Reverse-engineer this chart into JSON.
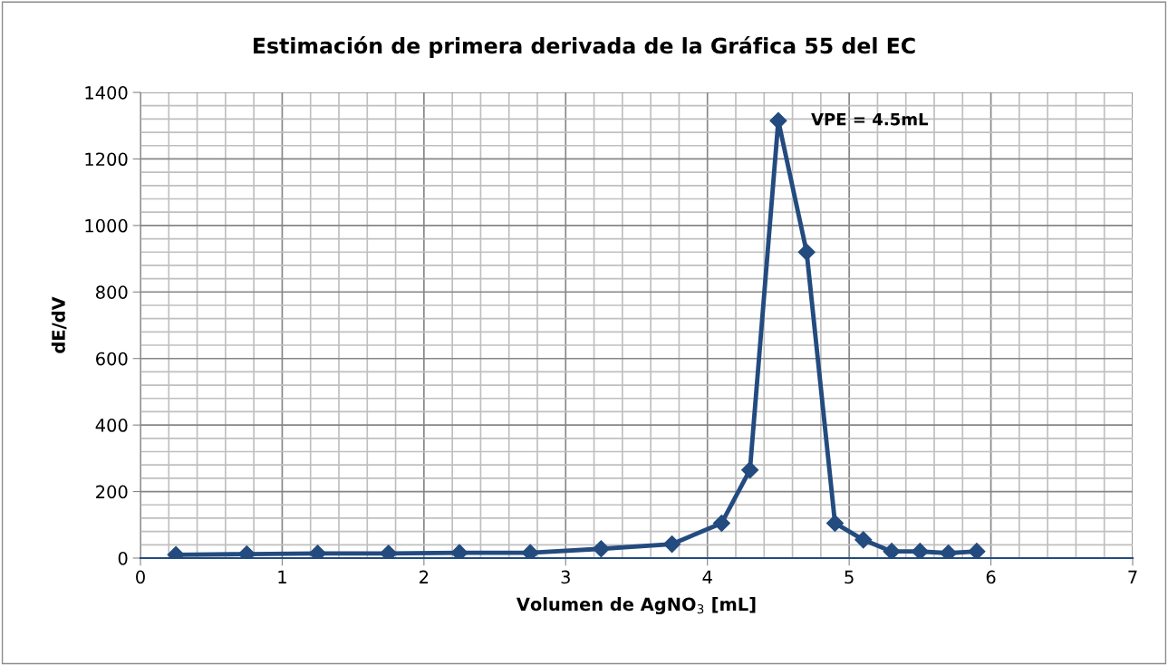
{
  "chart_data": {
    "type": "line",
    "title": "Estimación de primera derivada de la Gráfica 55 del EC",
    "xlabel": "Volumen de AgNO$_{3}$ [mL]",
    "ylabel": "dE/dV",
    "x": [
      0.25,
      0.75,
      1.25,
      1.75,
      2.25,
      2.75,
      3.25,
      3.75,
      4.1,
      4.3,
      4.5,
      4.7,
      4.9,
      5.1,
      5.3,
      5.5,
      5.7,
      5.9
    ],
    "series": [
      {
        "color": "#234b7f",
        "values": [
          10,
          12,
          14,
          14,
          16,
          16,
          28,
          42,
          105,
          265,
          1315,
          920,
          105,
          55,
          20,
          20,
          15,
          20
        ]
      }
    ],
    "xlim": [
      0,
      7
    ],
    "ylim": [
      0,
      1400
    ],
    "xticks": [
      0,
      {
        "value": 0.2,
        "label": null
      },
      {
        "value": 0.4,
        "label": null
      },
      {
        "value": 0.6,
        "label": null
      },
      {
        "value": 0.8,
        "label": null
      },
      1,
      {
        "value": 1.2,
        "label": null
      },
      {
        "value": 1.4,
        "label": null
      },
      {
        "value": 1.6,
        "label": null
      },
      {
        "value": 1.8,
        "label": null
      },
      2,
      {
        "value": 2.2,
        "label": null
      },
      {
        "value": 2.4,
        "label": null
      },
      {
        "value": 2.6,
        "label": null
      },
      {
        "value": 2.8,
        "label": null
      },
      3,
      {
        "value": 3.2,
        "label": null
      },
      {
        "value": 3.4,
        "label": null
      },
      {
        "value": 3.6,
        "label": null
      },
      {
        "value": 3.8,
        "label": null
      },
      4,
      {
        "value": 4.2,
        "label": null
      },
      {
        "value": 4.4,
        "label": null
      },
      {
        "value": 4.6,
        "label": null
      },
      {
        "value": 4.8,
        "label": null
      },
      5,
      {
        "value": 5.2,
        "label": null
      },
      {
        "value": 5.4,
        "label": null
      },
      {
        "value": 5.6,
        "label": null
      },
      {
        "value": 5.8,
        "label": null
      },
      6,
      {
        "value": 6.2,
        "label": null
      },
      {
        "value": 6.4,
        "label": null
      },
      {
        "value": 6.6,
        "label": null
      },
      {
        "value": 6.8,
        "label": null
      },
      7
    ],
    "yticks": [
      0,
      {
        "value": 40,
        "label": null
      },
      {
        "value": 80,
        "label": null
      },
      {
        "value": 120,
        "label": null
      },
      {
        "value": 160,
        "label": null
      },
      200,
      {
        "value": 240,
        "label": null
      },
      {
        "value": 280,
        "label": null
      },
      {
        "value": 320,
        "label": null
      },
      {
        "value": 360,
        "label": null
      },
      400,
      {
        "value": 440,
        "label": null
      },
      {
        "value": 480,
        "label": null
      },
      {
        "value": 520,
        "label": null
      },
      {
        "value": 560,
        "label": null
      },
      600,
      {
        "value": 640,
        "label": null
      },
      {
        "value": 680,
        "label": null
      },
      {
        "value": 720,
        "label": null
      },
      {
        "value": 760,
        "label": null
      },
      800,
      {
        "value": 840,
        "label": null
      },
      {
        "value": 880,
        "label": null
      },
      {
        "value": 920,
        "label": null
      },
      {
        "value": 960,
        "label": null
      },
      1000,
      {
        "value": 1040,
        "label": null
      },
      {
        "value": 1080,
        "label": null
      },
      {
        "value": 1120,
        "label": null
      },
      {
        "value": 1160,
        "label": null
      },
      1200,
      {
        "value": 1240,
        "label": null
      },
      {
        "value": 1280,
        "label": null
      },
      {
        "value": 1320,
        "label": null
      },
      {
        "value": 1360,
        "label": null
      },
      1400
    ],
    "grid": true,
    "marker": "diamond",
    "line_style": "solid",
    "legend": false,
    "annotations": [
      {
        "text": "VPE = 4.5mL",
        "x": 4.5,
        "y": 1315
      }
    ]
  }
}
